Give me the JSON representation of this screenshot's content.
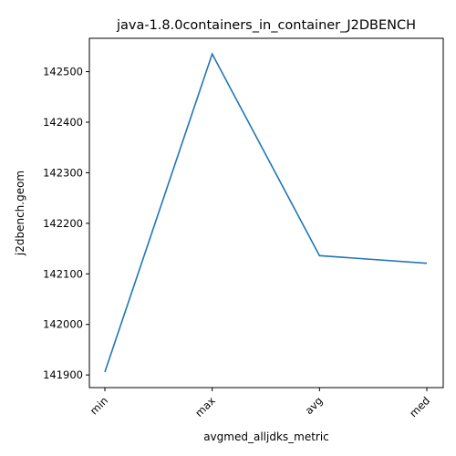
{
  "chart_data": {
    "type": "line",
    "title": "java-1.8.0containers_in_container_J2DBENCH",
    "xlabel": "avgmed_alljdks_metric",
    "ylabel": "j2dbench.geom",
    "categories": [
      "min",
      "max",
      "avg",
      "med"
    ],
    "series": [
      {
        "values": [
          141906,
          142535,
          142136,
          142121
        ],
        "color": "#1f77b4"
      }
    ],
    "yticks": [
      141900,
      142000,
      142100,
      142200,
      142300,
      142400,
      142500
    ],
    "ytick_labels": [
      "141900",
      "142000",
      "142100",
      "142200",
      "142300",
      "142400",
      "142500"
    ],
    "ylim": [
      141875,
      142566
    ],
    "grid": false
  }
}
